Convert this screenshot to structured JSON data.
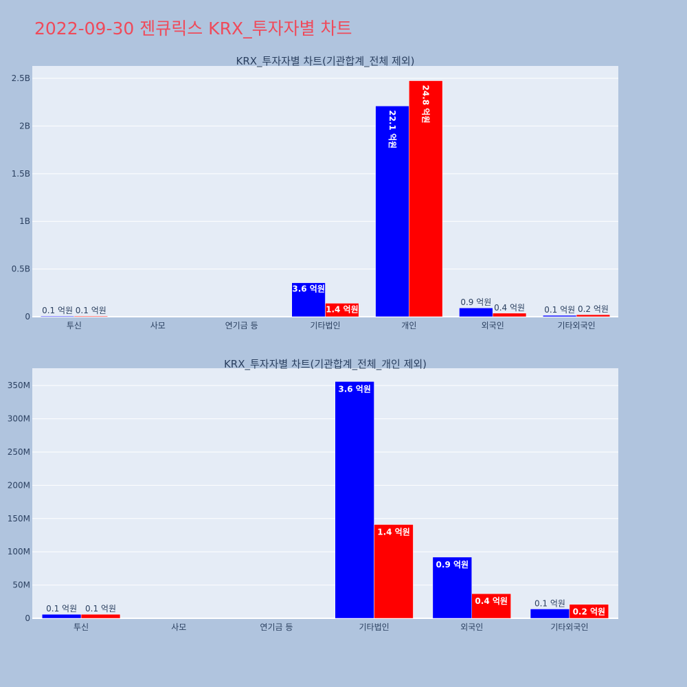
{
  "title": "2022-09-30 젠큐릭스 KRX_투자자별 차트",
  "colors": {
    "buy": "#0000ff",
    "sell": "#ff0000",
    "plot_bg": "#e5ecf6",
    "page_bg": "#b0c4de",
    "title": "#ef4a5a"
  },
  "chart_data": [
    {
      "type": "bar",
      "title": "KRX_투자자별 차트(기관합계_전체 제외)",
      "categories": [
        "투신",
        "사모",
        "연기금 등",
        "기타법인",
        "개인",
        "외국인",
        "기타외국인"
      ],
      "yticks": [
        {
          "value": 0,
          "label": "0"
        },
        {
          "value": 500000000,
          "label": "0.5B"
        },
        {
          "value": 1000000000,
          "label": "1B"
        },
        {
          "value": 1500000000,
          "label": "1.5B"
        },
        {
          "value": 2000000000,
          "label": "2B"
        },
        {
          "value": 2500000000,
          "label": "2.5B"
        }
      ],
      "ylim": [
        0,
        2630000000
      ],
      "series": [
        {
          "color": "#0000ff",
          "values": [
            6000000,
            0,
            0,
            356000000,
            2210000000,
            92000000,
            14000000
          ],
          "labels": [
            "0.1 억원",
            "",
            "",
            "3.6 억원",
            "22.1 억원",
            "0.9 억원",
            "0.1 억원"
          ]
        },
        {
          "color": "#ff0000",
          "values": [
            6000000,
            0,
            0,
            141000000,
            2475000000,
            37000000,
            21000000
          ],
          "labels": [
            "0.1 억원",
            "",
            "",
            "1.4 억원",
            "24.8 억원",
            "0.4 억원",
            "0.2 억원"
          ]
        }
      ]
    },
    {
      "type": "bar",
      "title": "KRX_투자자별 차트(기관합계_전체_개인 제외)",
      "categories": [
        "투신",
        "사모",
        "연기금 등",
        "기타법인",
        "외국인",
        "기타외국인"
      ],
      "yticks": [
        {
          "value": 0,
          "label": "0"
        },
        {
          "value": 50000000,
          "label": "50M"
        },
        {
          "value": 100000000,
          "label": "100M"
        },
        {
          "value": 150000000,
          "label": "150M"
        },
        {
          "value": 200000000,
          "label": "200M"
        },
        {
          "value": 250000000,
          "label": "250M"
        },
        {
          "value": 300000000,
          "label": "300M"
        },
        {
          "value": 350000000,
          "label": "350M"
        }
      ],
      "ylim": [
        0,
        376000000
      ],
      "series": [
        {
          "color": "#0000ff",
          "values": [
            6000000,
            0,
            0,
            356000000,
            92000000,
            14000000
          ],
          "labels": [
            "0.1 억원",
            "",
            "",
            "3.6 억원",
            "0.9 억원",
            "0.1 억원"
          ]
        },
        {
          "color": "#ff0000",
          "values": [
            6000000,
            0,
            0,
            141000000,
            37000000,
            21000000
          ],
          "labels": [
            "0.1 억원",
            "",
            "",
            "1.4 억원",
            "0.4 억원",
            "0.2 억원"
          ]
        }
      ]
    }
  ]
}
